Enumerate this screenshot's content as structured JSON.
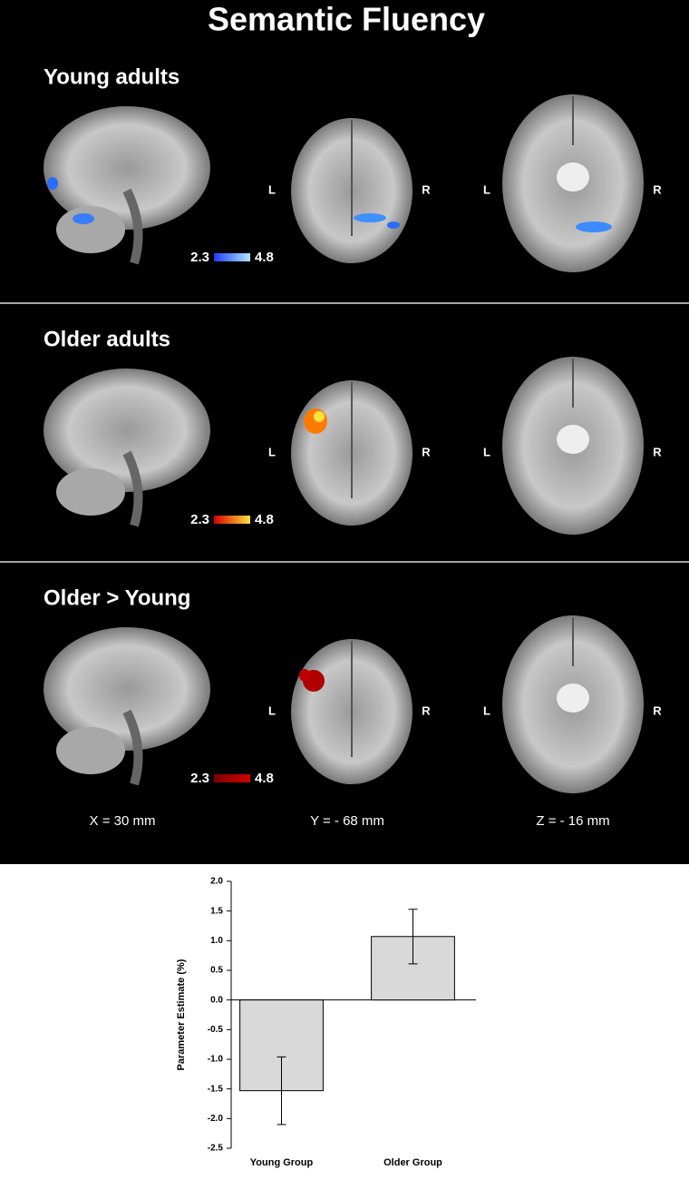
{
  "title": "Semantic Fluency",
  "panels": [
    {
      "label": "Young adults",
      "coronal_lr": [
        "L",
        "R"
      ],
      "axial_lr": [
        "L",
        "R"
      ],
      "colorbar": [
        "2.3",
        "4.8"
      ]
    },
    {
      "label": "Older adults",
      "coronal_lr": [
        "L",
        "R"
      ],
      "axial_lr": [
        "L",
        "R"
      ],
      "colorbar": [
        "2.3",
        "4.8"
      ]
    },
    {
      "label": "Older > Young",
      "coronal_lr": [
        "L",
        "R"
      ],
      "axial_lr": [
        "L",
        "R"
      ],
      "colorbar": [
        "2.3",
        "4.8"
      ]
    }
  ],
  "coordinates": [
    "X = 30 mm",
    "Y = - 68 mm",
    "Z = - 16 mm"
  ],
  "chart_data": {
    "type": "bar",
    "y_label": "Parameter Estimate (%)",
    "categories": [
      "Young Group",
      "Older Group"
    ],
    "values": [
      -1.53,
      1.07
    ],
    "errors": [
      0.57,
      0.46
    ],
    "color": "#d9d9d9",
    "ylim": [
      -2.5,
      2.0
    ],
    "yticks": [
      {
        "value": 2.0,
        "label": "2.0"
      },
      {
        "value": 1.5,
        "label": "1.5"
      },
      {
        "value": 1.0,
        "label": "1.0"
      },
      {
        "value": 0.5,
        "label": "0.5"
      },
      {
        "value": 0.0,
        "label": "0.0"
      },
      {
        "value": -0.5,
        "label": "-0.5"
      },
      {
        "value": -1.0,
        "label": "-1.0"
      },
      {
        "value": -1.5,
        "label": "-1.5"
      },
      {
        "value": -2.0,
        "label": "-2.0"
      },
      {
        "value": -2.5,
        "label": "-2.5"
      }
    ]
  }
}
